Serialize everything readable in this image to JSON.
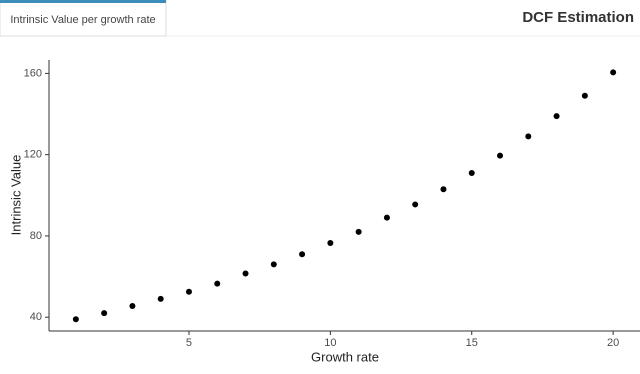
{
  "tab": {
    "label": "Intrinsic Value per growth rate"
  },
  "header": {
    "title": "DCF Estimation"
  },
  "chart_data": {
    "type": "scatter",
    "x_label": "Growth rate",
    "y_label": "Intrinsic Value",
    "x": [
      1,
      2,
      3,
      4,
      5,
      6,
      7,
      8,
      9,
      10,
      11,
      12,
      13,
      14,
      15,
      16,
      17,
      18,
      19,
      20
    ],
    "values": [
      39.0,
      42.0,
      45.5,
      49.0,
      52.5,
      56.5,
      61.5,
      66,
      71,
      76.5,
      82,
      89,
      95.5,
      103,
      111,
      119.5,
      129,
      139,
      149,
      160.5
    ],
    "color": "#000000",
    "xlim": [
      0.05,
      20.95
    ],
    "ylim": [
      33.2,
      166.6
    ],
    "xticks": [
      5,
      10,
      15,
      20
    ],
    "yticks": [
      40,
      80,
      120,
      160
    ]
  }
}
